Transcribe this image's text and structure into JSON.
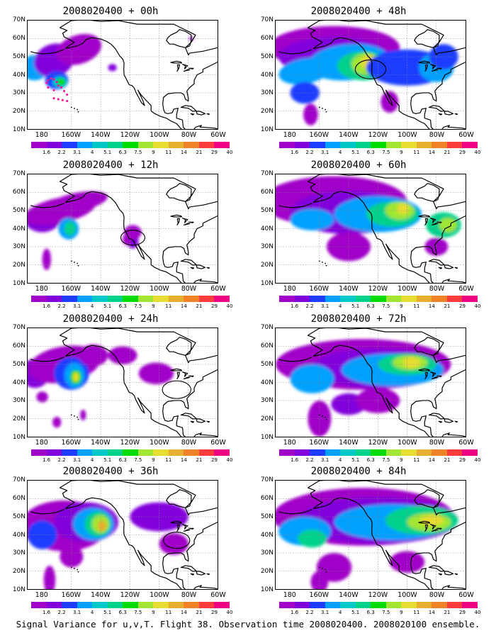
{
  "figure": {
    "caption": "Signal Variance for u,v,T. Flight 38. Observation time 2008020400. 2008020100 ensemble."
  },
  "axes": {
    "lat_labels": [
      "70N",
      "60N",
      "50N",
      "40N",
      "30N",
      "20N",
      "10N"
    ],
    "lon_labels": [
      "180",
      "160W",
      "140W",
      "120W",
      "100W",
      "80W",
      "60W"
    ]
  },
  "colorbar": {
    "colors": [
      "#a000c8",
      "#8200dc",
      "#1e3cff",
      "#00a0ff",
      "#00c8c8",
      "#00d28c",
      "#00dc00",
      "#a0e632",
      "#e6dc32",
      "#e6af2d",
      "#f08228",
      "#fa3c3c",
      "#f00082"
    ],
    "labels": [
      "1.6",
      "2.2",
      "3.1",
      "4",
      "5.1",
      "6.3",
      "7.5",
      "9",
      "11",
      "14",
      "21",
      "29",
      "40"
    ]
  },
  "panels": [
    {
      "title": "2008020400 + 00h"
    },
    {
      "title": "2008020400 + 48h"
    },
    {
      "title": "2008020400 + 12h"
    },
    {
      "title": "2008020400 + 60h"
    },
    {
      "title": "2008020400 + 24h"
    },
    {
      "title": "2008020400 + 72h"
    },
    {
      "title": "2008020400 + 36h"
    },
    {
      "title": "2008020400 + 84h"
    }
  ]
}
